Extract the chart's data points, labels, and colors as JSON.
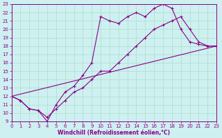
{
  "xlabel": "Windchill (Refroidissement éolien,°C)",
  "xlim": [
    0,
    23
  ],
  "ylim": [
    9,
    23
  ],
  "xticks": [
    0,
    1,
    2,
    3,
    4,
    5,
    6,
    7,
    8,
    9,
    10,
    11,
    12,
    13,
    14,
    15,
    16,
    17,
    18,
    19,
    20,
    21,
    22,
    23
  ],
  "yticks": [
    9,
    10,
    11,
    12,
    13,
    14,
    15,
    16,
    17,
    18,
    19,
    20,
    21,
    22,
    23
  ],
  "bg_color": "#cef0f0",
  "line_color": "#880088",
  "grid_color": "#aaddcc",
  "line1_x": [
    0,
    1,
    2,
    3,
    4,
    5,
    6,
    7,
    8,
    9,
    10,
    11,
    12,
    13,
    14,
    15,
    16,
    17,
    18,
    19,
    20,
    21,
    22,
    23
  ],
  "line1_y": [
    12.0,
    11.5,
    10.5,
    10.3,
    9.5,
    10.5,
    11.5,
    12.5,
    13.0,
    14.0,
    15.0,
    15.0,
    16.0,
    17.0,
    18.0,
    19.0,
    20.0,
    20.5,
    21.0,
    21.5,
    20.0,
    18.5,
    18.0,
    18.0
  ],
  "line2_x": [
    0,
    1,
    2,
    3,
    4,
    5,
    6,
    7,
    8,
    9,
    10,
    11,
    12,
    13,
    14,
    15,
    16,
    17,
    18,
    19,
    20,
    21,
    22,
    23
  ],
  "line2_y": [
    12.0,
    11.5,
    10.5,
    10.3,
    9.0,
    11.0,
    12.5,
    13.2,
    14.5,
    16.0,
    21.5,
    21.0,
    20.7,
    21.5,
    22.0,
    21.5,
    22.5,
    23.0,
    22.5,
    20.0,
    18.5,
    18.2,
    18.0,
    18.0
  ],
  "line3_x": [
    0,
    23
  ],
  "line3_y": [
    12.0,
    18.0
  ]
}
